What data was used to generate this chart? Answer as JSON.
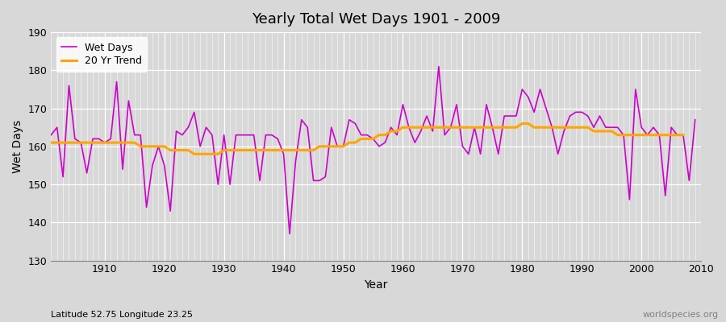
{
  "title": "Yearly Total Wet Days 1901 - 2009",
  "xlabel": "Year",
  "ylabel": "Wet Days",
  "lat_lon_label": "Latitude 52.75 Longitude 23.25",
  "watermark": "worldspecies.org",
  "wet_days_color": "#cc00cc",
  "trend_color": "#ffa500",
  "bg_color": "#d8d8d8",
  "plot_bg_color": "#d8d8d8",
  "ylim": [
    130,
    190
  ],
  "yticks": [
    130,
    140,
    150,
    160,
    170,
    180,
    190
  ],
  "years": [
    1901,
    1902,
    1903,
    1904,
    1905,
    1906,
    1907,
    1908,
    1909,
    1910,
    1911,
    1912,
    1913,
    1914,
    1915,
    1916,
    1917,
    1918,
    1919,
    1920,
    1921,
    1922,
    1923,
    1924,
    1925,
    1926,
    1927,
    1928,
    1929,
    1930,
    1931,
    1932,
    1933,
    1934,
    1935,
    1936,
    1937,
    1938,
    1939,
    1940,
    1941,
    1942,
    1943,
    1944,
    1945,
    1946,
    1947,
    1948,
    1949,
    1950,
    1951,
    1952,
    1953,
    1954,
    1955,
    1956,
    1957,
    1958,
    1959,
    1960,
    1961,
    1962,
    1963,
    1964,
    1965,
    1966,
    1967,
    1968,
    1969,
    1970,
    1971,
    1972,
    1973,
    1974,
    1975,
    1976,
    1977,
    1978,
    1979,
    1980,
    1981,
    1982,
    1983,
    1984,
    1985,
    1986,
    1987,
    1988,
    1989,
    1990,
    1991,
    1992,
    1993,
    1994,
    1995,
    1996,
    1997,
    1998,
    1999,
    2000,
    2001,
    2002,
    2003,
    2004,
    2005,
    2006,
    2007,
    2008,
    2009
  ],
  "wet_days": [
    163,
    165,
    152,
    176,
    162,
    161,
    153,
    162,
    162,
    161,
    162,
    177,
    154,
    172,
    163,
    163,
    144,
    155,
    160,
    155,
    143,
    164,
    163,
    165,
    169,
    160,
    165,
    163,
    150,
    163,
    150,
    163,
    163,
    163,
    163,
    151,
    163,
    163,
    162,
    158,
    137,
    156,
    167,
    165,
    151,
    151,
    152,
    165,
    160,
    160,
    167,
    166,
    163,
    163,
    162,
    160,
    161,
    165,
    163,
    171,
    165,
    161,
    164,
    168,
    164,
    181,
    163,
    165,
    171,
    160,
    158,
    165,
    158,
    171,
    165,
    158,
    168,
    168,
    168,
    175,
    173,
    169,
    175,
    170,
    165,
    158,
    164,
    168,
    169,
    169,
    168,
    165,
    168,
    165,
    165,
    165,
    163,
    146,
    175,
    165,
    163,
    165,
    163,
    147,
    165,
    163,
    163,
    151,
    167
  ],
  "trend": [
    161,
    161,
    161,
    161,
    161,
    161,
    161,
    161,
    161,
    161,
    161,
    161,
    161,
    161,
    161,
    160,
    160,
    160,
    160,
    160,
    159,
    159,
    159,
    159,
    158,
    158,
    158,
    158,
    158,
    159,
    159,
    159,
    159,
    159,
    159,
    159,
    159,
    159,
    159,
    159,
    159,
    159,
    159,
    159,
    159,
    160,
    160,
    160,
    160,
    160,
    161,
    161,
    162,
    162,
    162,
    163,
    163,
    164,
    164,
    165,
    165,
    165,
    165,
    165,
    165,
    165,
    165,
    165,
    165,
    165,
    165,
    165,
    165,
    165,
    165,
    165,
    165,
    165,
    165,
    166,
    166,
    165,
    165,
    165,
    165,
    165,
    165,
    165,
    165,
    165,
    165,
    164,
    164,
    164,
    164,
    163,
    163,
    163,
    163,
    163,
    163,
    163,
    163,
    163,
    163,
    163,
    163,
    null,
    null
  ]
}
